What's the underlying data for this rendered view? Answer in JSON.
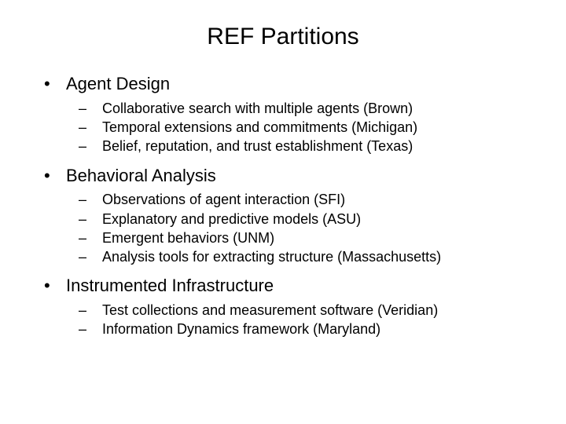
{
  "title": "REF Partitions",
  "sections": [
    {
      "heading": "Agent Design",
      "items": [
        "Collaborative search with multiple agents (Brown)",
        "Temporal extensions and commitments (Michigan)",
        "Belief, reputation, and trust establishment (Texas)"
      ]
    },
    {
      "heading": "Behavioral Analysis",
      "items": [
        "Observations of agent interaction (SFI)",
        "Explanatory and predictive models (ASU)",
        "Emergent behaviors (UNM)",
        "Analysis tools for extracting structure (Massachusetts)"
      ]
    },
    {
      "heading": "Instrumented Infrastructure",
      "items": [
        "Test collections and measurement software (Veridian)",
        "Information Dynamics framework (Maryland)"
      ]
    }
  ],
  "style": {
    "background_color": "#ffffff",
    "text_color": "#000000",
    "title_fontsize": 30,
    "l1_fontsize": 22,
    "l2_fontsize": 18,
    "font_family": "Arial"
  }
}
